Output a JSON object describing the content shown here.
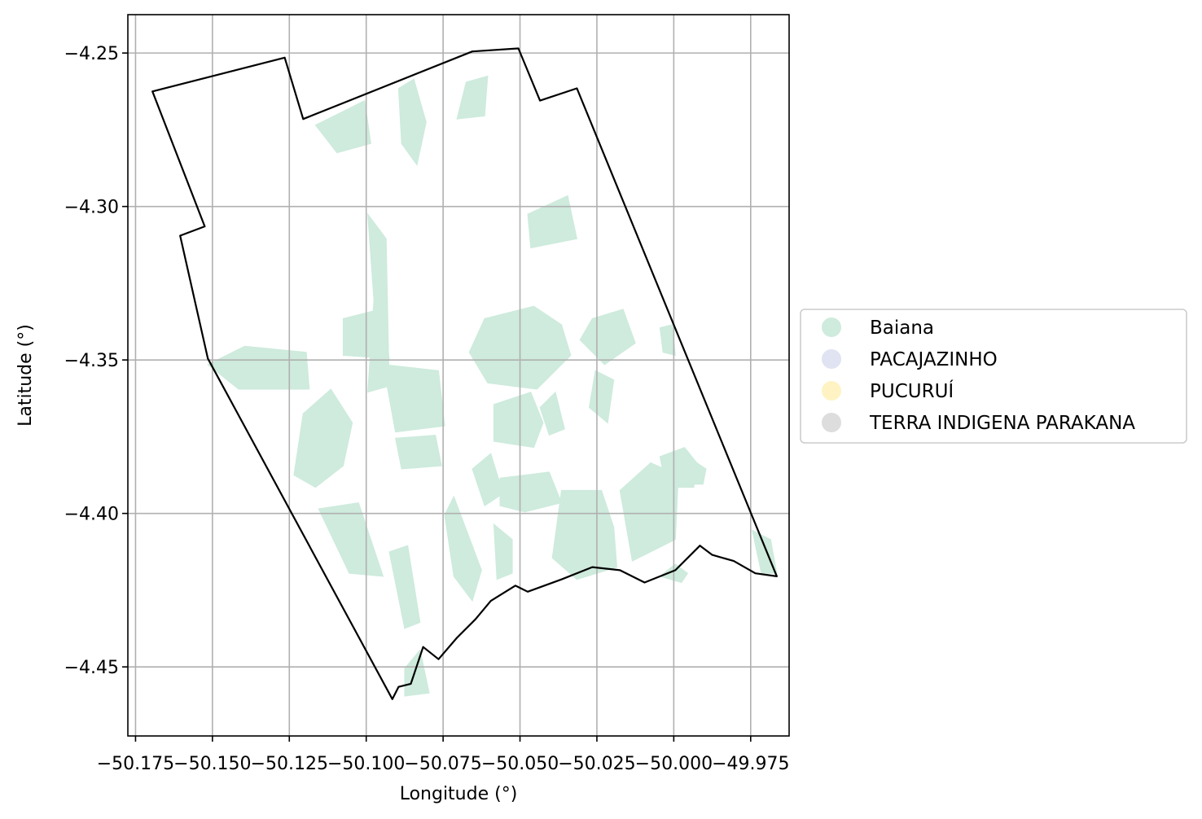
{
  "chart_data": {
    "type": "map",
    "xlabel": "Longitude (°)",
    "ylabel": "Latitude (°)",
    "xlim": [
      -50.1775,
      -49.9625
    ],
    "ylim": [
      -4.4725,
      -4.2375
    ],
    "x_ticks": [
      -50.175,
      -50.15,
      -50.125,
      -50.1,
      -50.075,
      -50.05,
      -50.025,
      -50.0,
      -49.975
    ],
    "x_tick_labels": [
      "−50.175",
      "−50.150",
      "−50.125",
      "−50.100",
      "−50.075",
      "−50.050",
      "−50.025",
      "−50.000",
      "−49.975"
    ],
    "y_ticks": [
      -4.25,
      -4.3,
      -4.35,
      -4.4,
      -4.45
    ],
    "y_tick_labels": [
      "−4.25",
      "−4.30",
      "−4.35",
      "−4.40",
      "−4.45"
    ],
    "grid": true,
    "legend_position": "right",
    "legend": [
      {
        "label": "Baiana",
        "color": "#ceebdd"
      },
      {
        "label": "PACAJAZINHO",
        "color": "#dfe3f2"
      },
      {
        "label": "PUCURUÍ",
        "color": "#fff3c4"
      },
      {
        "label": "TERRA INDIGENA PARAKANA",
        "color": "#dddddd"
      }
    ],
    "fill_color": "#ceebdd",
    "boundary_color": "#000000",
    "boundary": [
      [
        -50.1695,
        -4.2625
      ],
      [
        -50.1265,
        -4.2515
      ],
      [
        -50.1205,
        -4.2715
      ],
      [
        -50.0655,
        -4.2495
      ],
      [
        -50.0505,
        -4.2485
      ],
      [
        -50.0435,
        -4.2655
      ],
      [
        -50.0315,
        -4.2615
      ],
      [
        -49.9665,
        -4.4205
      ],
      [
        -49.9735,
        -4.4195
      ],
      [
        -49.9805,
        -4.4155
      ],
      [
        -49.9875,
        -4.4135
      ],
      [
        -49.9915,
        -4.4105
      ],
      [
        -49.9995,
        -4.4185
      ],
      [
        -50.0095,
        -4.4225
      ],
      [
        -50.0175,
        -4.4185
      ],
      [
        -50.0265,
        -4.4175
      ],
      [
        -50.0365,
        -4.4215
      ],
      [
        -50.0475,
        -4.4255
      ],
      [
        -50.0515,
        -4.4235
      ],
      [
        -50.0595,
        -4.4285
      ],
      [
        -50.0645,
        -4.4345
      ],
      [
        -50.0705,
        -4.4405
      ],
      [
        -50.0765,
        -4.4475
      ],
      [
        -50.0815,
        -4.4435
      ],
      [
        -50.0855,
        -4.4555
      ],
      [
        -50.0895,
        -4.4565
      ],
      [
        -50.0915,
        -4.4605
      ],
      [
        -50.1515,
        -4.3495
      ],
      [
        -50.1605,
        -4.3095
      ],
      [
        -50.1525,
        -4.3065
      ],
      [
        -50.1695,
        -4.2625
      ]
    ],
    "regions": [
      {
        "name": "Baiana",
        "polygons": [
          [
            [
              -50.1165,
              -4.2735
            ],
            [
              -50.1005,
              -4.2655
            ],
            [
              -50.0985,
              -4.2795
            ],
            [
              -50.1095,
              -4.2825
            ]
          ],
          [
            [
              -50.0895,
              -4.2615
            ],
            [
              -50.0845,
              -4.2585
            ],
            [
              -50.0805,
              -4.2725
            ],
            [
              -50.0835,
              -4.2865
            ],
            [
              -50.0885,
              -4.2795
            ]
          ],
          [
            [
              -50.0675,
              -4.2595
            ],
            [
              -50.0605,
              -4.2575
            ],
            [
              -50.0615,
              -4.2705
            ],
            [
              -50.0705,
              -4.2715
            ]
          ],
          [
            [
              -50.0475,
              -4.3025
            ],
            [
              -50.0345,
              -4.2965
            ],
            [
              -50.0315,
              -4.3105
            ],
            [
              -50.0465,
              -4.3135
            ]
          ],
          [
            [
              -50.0995,
              -4.3025
            ],
            [
              -50.0935,
              -4.3105
            ],
            [
              -50.0925,
              -4.3585
            ],
            [
              -50.0995,
              -4.3605
            ],
            [
              -50.0975,
              -4.3305
            ]
          ],
          [
            [
              -50.1075,
              -4.3365
            ],
            [
              -50.0955,
              -4.3335
            ],
            [
              -50.0925,
              -4.3495
            ],
            [
              -50.1075,
              -4.3485
            ]
          ],
          [
            [
              -50.1515,
              -4.3515
            ],
            [
              -50.1395,
              -4.3455
            ],
            [
              -50.1195,
              -4.3475
            ],
            [
              -50.1185,
              -4.3595
            ],
            [
              -50.1415,
              -4.3595
            ]
          ],
          [
            [
              -50.1205,
              -4.3675
            ],
            [
              -50.1115,
              -4.3595
            ],
            [
              -50.1045,
              -4.3705
            ],
            [
              -50.1075,
              -4.3845
            ],
            [
              -50.1165,
              -4.3915
            ],
            [
              -50.1235,
              -4.3875
            ]
          ],
          [
            [
              -50.1155,
              -4.3985
            ],
            [
              -50.1025,
              -4.3965
            ],
            [
              -50.0945,
              -4.4205
            ],
            [
              -50.1055,
              -4.4195
            ]
          ],
          [
            [
              -50.0925,
              -4.4125
            ],
            [
              -50.0865,
              -4.4105
            ],
            [
              -50.0825,
              -4.4355
            ],
            [
              -50.0875,
              -4.4375
            ]
          ],
          [
            [
              -50.0875,
              -4.4505
            ],
            [
              -50.0825,
              -4.4445
            ],
            [
              -50.0795,
              -4.4585
            ],
            [
              -50.0875,
              -4.4595
            ]
          ],
          [
            [
              -50.0945,
              -4.3515
            ],
            [
              -50.0765,
              -4.3535
            ],
            [
              -50.0745,
              -4.3715
            ],
            [
              -50.0905,
              -4.3735
            ]
          ],
          [
            [
              -50.0905,
              -4.3755
            ],
            [
              -50.0775,
              -4.3745
            ],
            [
              -50.0755,
              -4.3845
            ],
            [
              -50.0885,
              -4.3855
            ]
          ],
          [
            [
              -50.0615,
              -4.3365
            ],
            [
              -50.0455,
              -4.3325
            ],
            [
              -50.0365,
              -4.3385
            ],
            [
              -50.0335,
              -4.3485
            ],
            [
              -50.0445,
              -4.3595
            ],
            [
              -50.0605,
              -4.3575
            ],
            [
              -50.0665,
              -4.3475
            ]
          ],
          [
            [
              -50.0585,
              -4.3645
            ],
            [
              -50.0465,
              -4.3605
            ],
            [
              -50.0425,
              -4.3705
            ],
            [
              -50.0455,
              -4.3785
            ],
            [
              -50.0585,
              -4.3765
            ]
          ],
          [
            [
              -50.0265,
              -4.3365
            ],
            [
              -50.0165,
              -4.3335
            ],
            [
              -50.0125,
              -4.3445
            ],
            [
              -50.0225,
              -4.3515
            ],
            [
              -50.0305,
              -4.3435
            ]
          ],
          [
            [
              -50.0255,
              -4.3535
            ],
            [
              -50.0195,
              -4.3565
            ],
            [
              -50.0215,
              -4.3705
            ],
            [
              -50.0275,
              -4.3655
            ]
          ],
          [
            [
              -50.0655,
              -4.3855
            ],
            [
              -50.0595,
              -4.3805
            ],
            [
              -50.0555,
              -4.3935
            ],
            [
              -50.0615,
              -4.3975
            ]
          ],
          [
            [
              -50.0565,
              -4.3885
            ],
            [
              -50.0405,
              -4.3865
            ],
            [
              -50.0365,
              -4.3965
            ],
            [
              -50.0485,
              -4.3995
            ],
            [
              -50.0565,
              -4.3975
            ]
          ],
          [
            [
              -50.0365,
              -4.3925
            ],
            [
              -50.0235,
              -4.3925
            ],
            [
              -50.0195,
              -4.4045
            ],
            [
              -50.0185,
              -4.4175
            ],
            [
              -50.0315,
              -4.4215
            ],
            [
              -50.0395,
              -4.4145
            ]
          ],
          [
            [
              -50.0745,
              -4.4005
            ],
            [
              -50.0715,
              -4.3945
            ],
            [
              -50.0625,
              -4.4185
            ],
            [
              -50.0655,
              -4.4285
            ],
            [
              -50.0715,
              -4.4205
            ]
          ],
          [
            [
              -50.0585,
              -4.4035
            ],
            [
              -50.0525,
              -4.4085
            ],
            [
              -50.0525,
              -4.4195
            ],
            [
              -50.0575,
              -4.4215
            ]
          ],
          [
            [
              -50.0175,
              -4.3925
            ],
            [
              -50.0075,
              -4.3835
            ],
            [
              -49.9985,
              -4.3875
            ],
            [
              -49.9995,
              -4.4085
            ],
            [
              -50.0135,
              -4.4155
            ]
          ],
          [
            [
              -50.0045,
              -4.3815
            ],
            [
              -49.9965,
              -4.3785
            ],
            [
              -49.9925,
              -4.3835
            ],
            [
              -49.9935,
              -4.3915
            ],
            [
              -50.0025,
              -4.3915
            ]
          ],
          [
            [
              -49.9955,
              -4.3815
            ],
            [
              -49.9895,
              -4.3855
            ],
            [
              -49.9905,
              -4.3905
            ],
            [
              -49.9955,
              -4.3905
            ]
          ],
          [
            [
              -50.0045,
              -4.3395
            ],
            [
              -50.0005,
              -4.3385
            ],
            [
              -49.9995,
              -4.3485
            ],
            [
              -50.0035,
              -4.3475
            ]
          ],
          [
            [
              -49.9745,
              -4.4055
            ],
            [
              -49.9685,
              -4.4085
            ],
            [
              -49.9665,
              -4.4195
            ],
            [
              -49.9715,
              -4.4195
            ]
          ],
          [
            [
              -50.0435,
              -4.3655
            ],
            [
              -50.0385,
              -4.3605
            ],
            [
              -50.0355,
              -4.3725
            ],
            [
              -50.0405,
              -4.3745
            ]
          ],
          [
            [
              -50.0045,
              -4.4205
            ],
            [
              -49.9995,
              -4.4165
            ],
            [
              -49.9955,
              -4.4195
            ],
            [
              -49.9975,
              -4.4225
            ]
          ]
        ]
      },
      {
        "name": "PACAJAZINHO",
        "polygons": []
      },
      {
        "name": "PUCURUÍ",
        "polygons": []
      },
      {
        "name": "TERRA INDIGENA PARAKANA",
        "polygons": []
      }
    ]
  }
}
